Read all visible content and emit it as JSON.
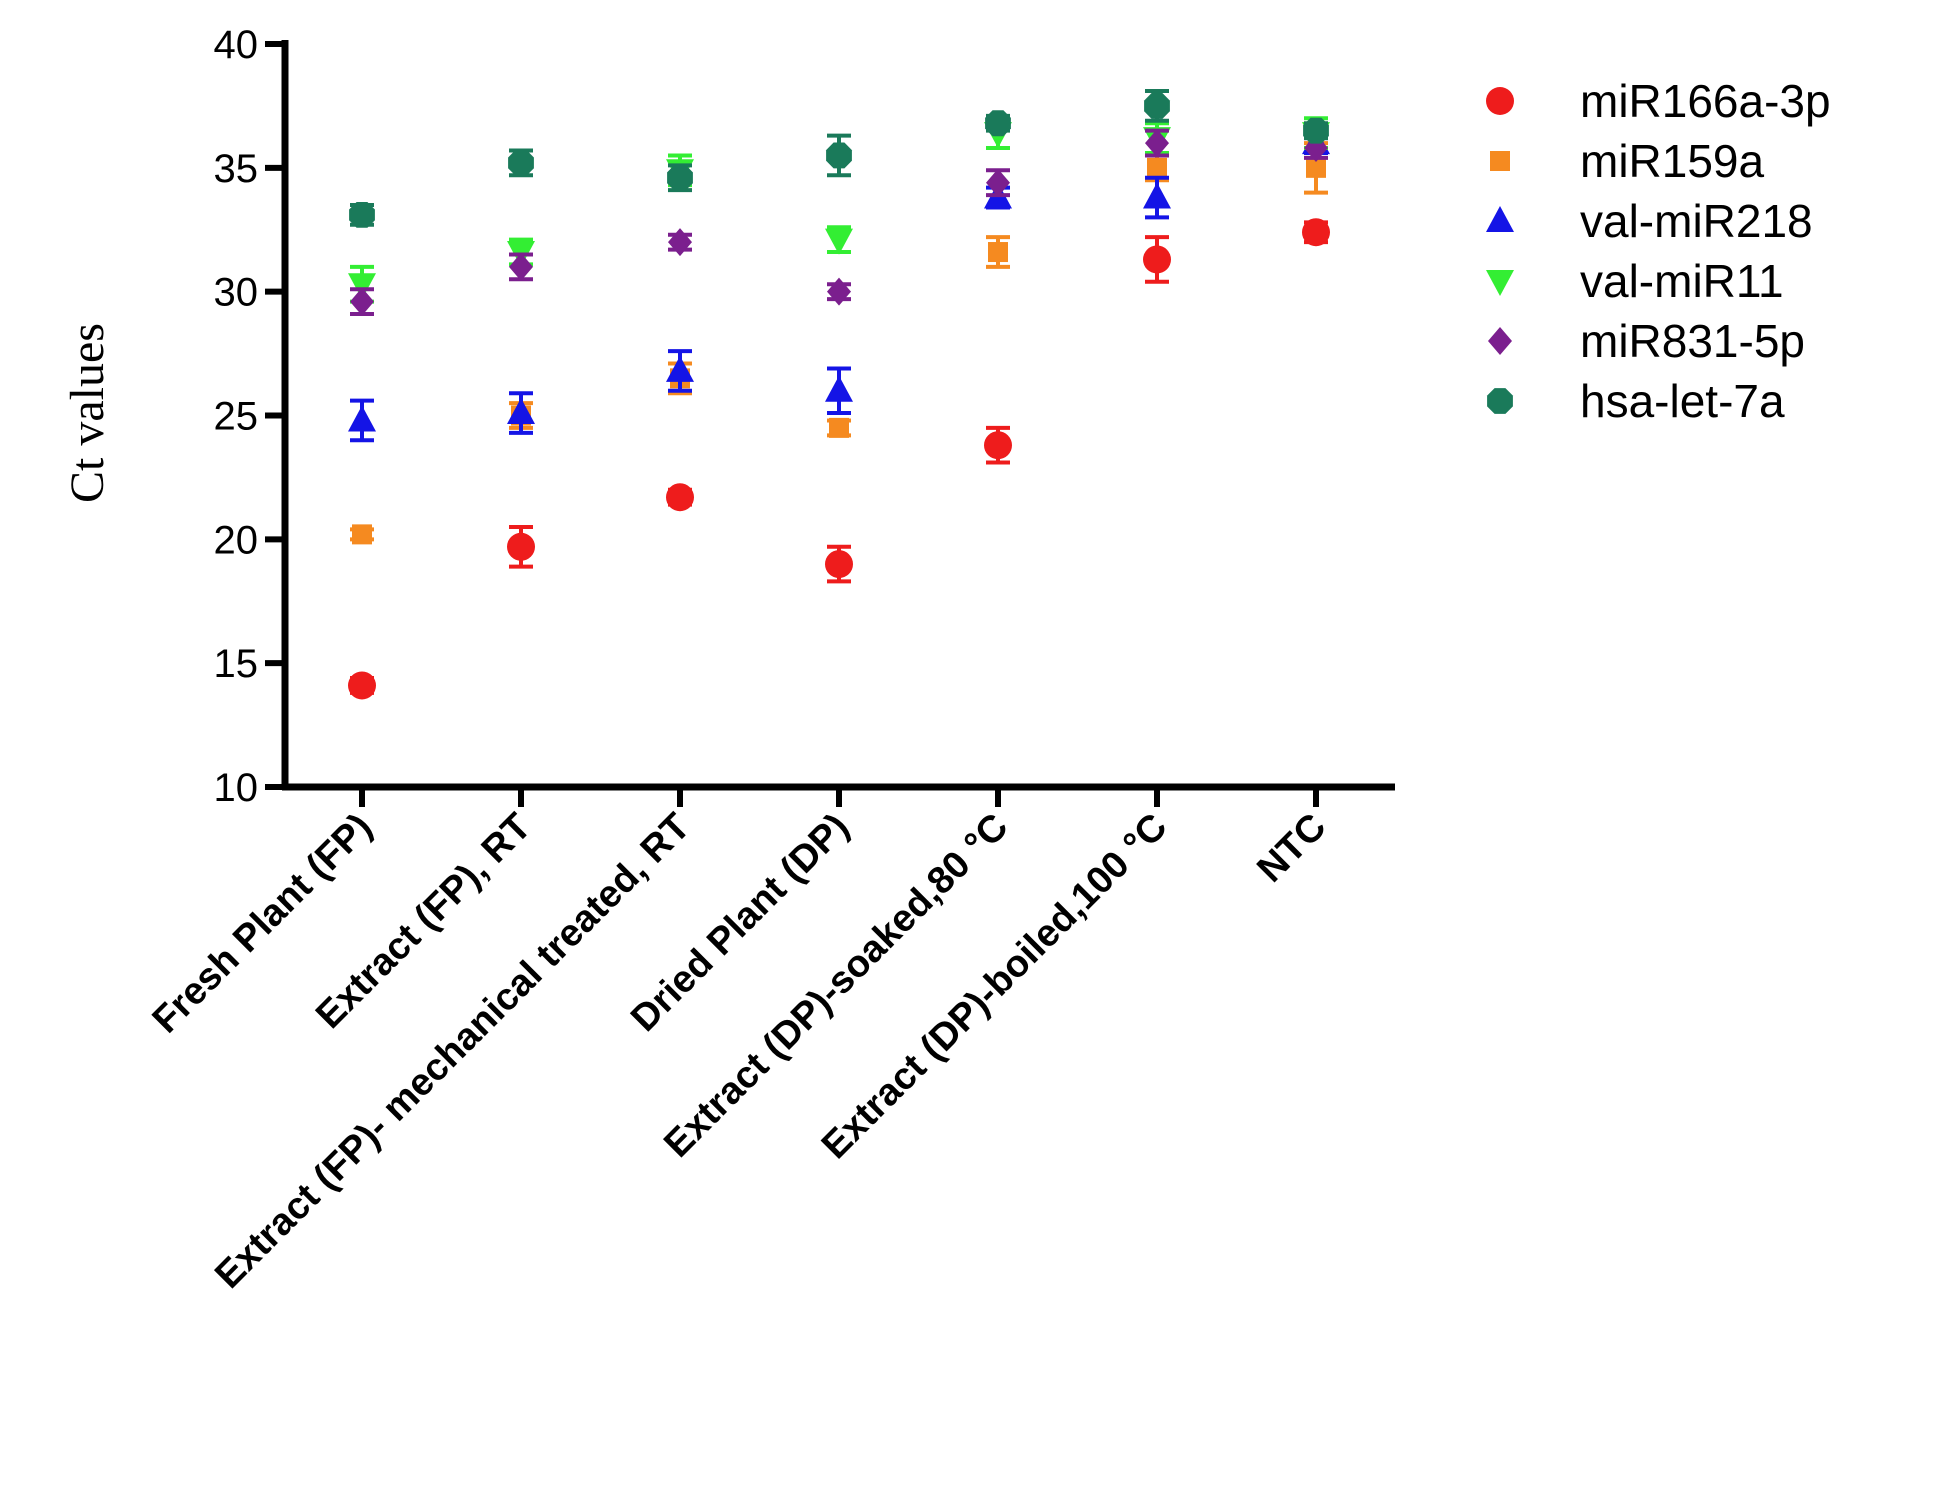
{
  "chart_data": {
    "type": "scatter",
    "title": "",
    "xlabel": "",
    "ylabel": "Ct values",
    "ylim": [
      10,
      40
    ],
    "yticks": [
      10,
      15,
      20,
      25,
      30,
      35,
      40
    ],
    "grid": false,
    "legend_position": "top-right",
    "categories": [
      "Fresh Plant (FP)",
      "Extract (FP), RT",
      "Extract (FP)- mechanical treated, RT",
      "Dried Plant (DP)",
      "Extract (DP)-soaked,80 °C",
      "Extract (DP)-boiled,100 °C",
      "NTC"
    ],
    "series": [
      {
        "name": "miR166a-3p",
        "marker": "circle",
        "color": "#ee1c1c",
        "values": [
          14.1,
          19.7,
          21.7,
          19.0,
          23.8,
          31.3,
          32.4
        ],
        "errors": [
          0.3,
          0.8,
          0.3,
          0.7,
          0.7,
          0.9,
          0.4
        ]
      },
      {
        "name": "miR159a",
        "marker": "square",
        "color": "#f58a20",
        "values": [
          20.2,
          25.0,
          26.5,
          24.5,
          31.6,
          35.0,
          35.0
        ],
        "errors": [
          0.2,
          0.5,
          0.6,
          0.3,
          0.6,
          0.5,
          1.0
        ]
      },
      {
        "name": "val-miR218",
        "marker": "triangle-up",
        "color": "#1414e6",
        "values": [
          24.8,
          25.1,
          26.8,
          26.0,
          33.8,
          33.8,
          36.0
        ],
        "errors": [
          0.8,
          0.8,
          0.8,
          0.9,
          0.4,
          0.8,
          0.4
        ]
      },
      {
        "name": "val-miR11",
        "marker": "triangle-down",
        "color": "#33ee33",
        "values": [
          30.3,
          31.6,
          34.9,
          32.1,
          36.4,
          36.2,
          36.4
        ],
        "errors": [
          0.7,
          0.5,
          0.6,
          0.5,
          0.6,
          0.6,
          0.6
        ]
      },
      {
        "name": "miR831-5p",
        "marker": "diamond",
        "color": "#7b1f8e",
        "values": [
          29.6,
          31.0,
          32.0,
          30.0,
          34.4,
          36.0,
          35.8
        ],
        "errors": [
          0.5,
          0.5,
          0.3,
          0.3,
          0.5,
          0.5,
          0.4
        ]
      },
      {
        "name": "hsa-let-7a",
        "marker": "hex",
        "color": "#1a7a5a",
        "values": [
          33.1,
          35.2,
          34.6,
          35.5,
          36.8,
          37.5,
          36.5
        ],
        "errors": [
          0.4,
          0.5,
          0.5,
          0.8,
          0.3,
          0.6,
          0.3
        ]
      }
    ]
  }
}
